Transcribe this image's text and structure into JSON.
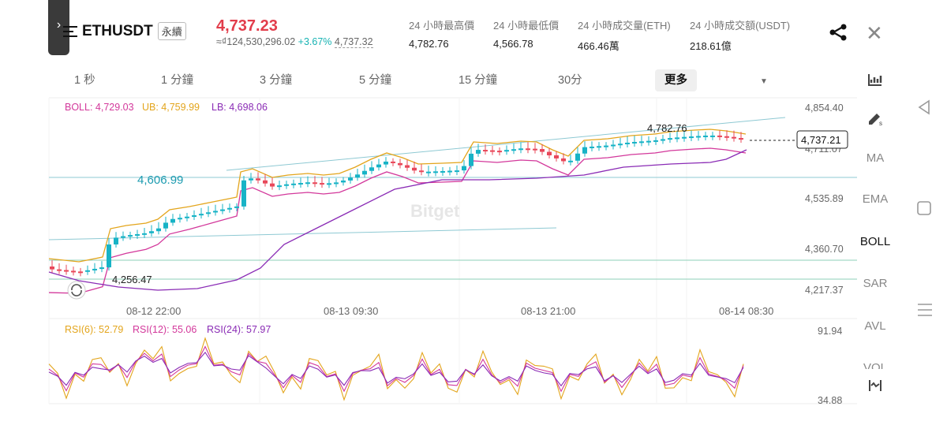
{
  "header": {
    "symbol": "ETHUSDT",
    "contract_tag": "永續",
    "price": "4,737.23",
    "cny_value": "≈₫124,530,296.02",
    "change": "+3.67%",
    "last_price": "4,737.32",
    "stats": [
      {
        "label": "24 小時最高價",
        "value": "4,782.76"
      },
      {
        "label": "24 小時最低價",
        "value": "4,566.78"
      },
      {
        "label": "24 小時成交量(ETH)",
        "value": "466.46萬"
      },
      {
        "label": "24 小時成交額(USDT)",
        "value": "218.61億"
      }
    ]
  },
  "timeframes": [
    "1 秒",
    "1 分鐘",
    "3 分鐘",
    "5 分鐘",
    "15 分鐘",
    "30分",
    "更多"
  ],
  "right_tools": [
    "MA",
    "EMA",
    "BOLL",
    "SAR",
    "AVL",
    "VOL"
  ],
  "chart": {
    "boll_label": "BOLL: 4,729.03",
    "ub_label": "UB: 4,759.99",
    "lb_label": "LB: 4,698.06",
    "y_ticks": [
      "4,854.40",
      "4,711.07",
      "4,535.89",
      "4,360.70",
      "4,217.37"
    ],
    "current_price": "4,737.21",
    "high_label": "4,782.76",
    "low_label": "4,256.47",
    "hline_label": "4,606.99",
    "x_ticks": [
      "08-12 22:00",
      "08-13 09:30",
      "08-13 21:00",
      "08-14 08:30"
    ],
    "watermark": "Bitget",
    "rsi6": "RSI(6): 52.79",
    "rsi12": "RSI(12): 55.06",
    "rsi24": "RSI(24): 57.97",
    "rsi_ticks": [
      "91.94",
      "34.88"
    ]
  },
  "colors": {
    "up": "#17b3c6",
    "down": "#e8485a",
    "accent": "#e23d4b",
    "boll": "#d3389b",
    "ub": "#e3a51c",
    "lb": "#8a2bb5"
  }
}
